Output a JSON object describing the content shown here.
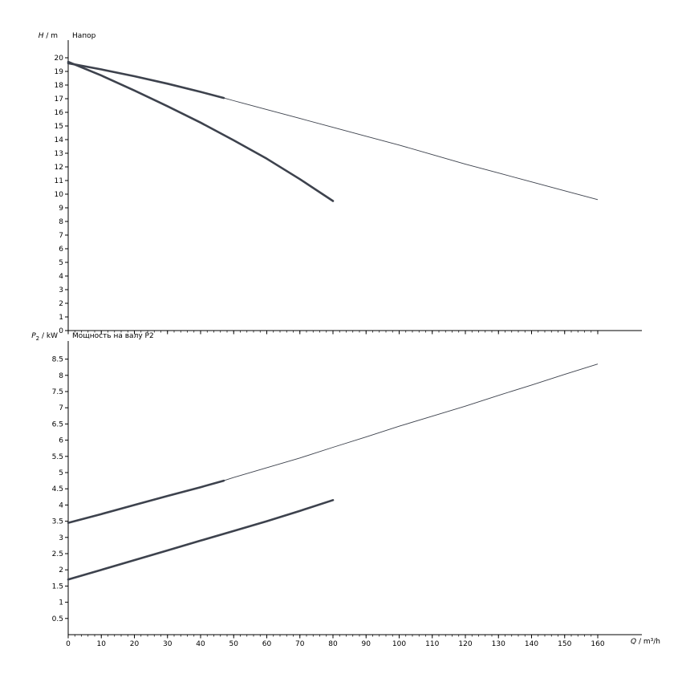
{
  "style": {
    "background": "#ffffff",
    "axis_color": "#000000",
    "curve_color": "#3d424d",
    "text_color": "#000000"
  },
  "labels": {
    "head_axis": {
      "var": "H",
      "unit": " / m"
    },
    "power_axis": {
      "var": "P",
      "sub": "2",
      "unit": " / kW"
    },
    "flow_axis": {
      "var": "Q",
      "unit": " / m³/h"
    }
  },
  "chart_data": [
    {
      "type": "line",
      "title": "Напор",
      "ylabel": "H / m",
      "xlabel": "Q / m³/h",
      "xlim": [
        0,
        160
      ],
      "ylim": [
        0,
        20
      ],
      "grid": false,
      "legend": "none",
      "x_minor_step": 2,
      "x_ticks": [
        0,
        10,
        20,
        30,
        40,
        50,
        60,
        70,
        80,
        90,
        100,
        110,
        120,
        130,
        140,
        150,
        160
      ],
      "x_tick_labels": [
        "0",
        "10",
        "20",
        "30",
        "40",
        "50",
        "60",
        "70",
        "80",
        "90",
        "100",
        "110",
        "120",
        "130",
        "140",
        "150",
        "160"
      ],
      "y_ticks": [
        0,
        1,
        2,
        3,
        4,
        5,
        6,
        7,
        8,
        9,
        10,
        11,
        12,
        13,
        14,
        15,
        16,
        17,
        18,
        19,
        20
      ],
      "y_tick_labels": [
        "0",
        "1",
        "2",
        "3",
        "4",
        "5",
        "6",
        "7",
        "8",
        "9",
        "10",
        "11",
        "12",
        "13",
        "14",
        "15",
        "16",
        "17",
        "18",
        "19",
        "20"
      ],
      "series": [
        {
          "name": "head-curve-full-speed",
          "x": [
            0,
            10,
            20,
            30,
            40,
            47,
            50,
            60,
            70,
            80,
            90,
            100,
            110,
            120,
            130,
            140,
            150,
            160
          ],
          "y": [
            19.6,
            19.15,
            18.65,
            18.1,
            17.5,
            17.05,
            16.85,
            16.2,
            15.55,
            14.9,
            14.25,
            13.6,
            12.9,
            12.2,
            11.55,
            10.9,
            10.25,
            9.6
          ],
          "bold_to_index": 5
        },
        {
          "name": "head-curve-reduced-speed",
          "x": [
            0,
            10,
            20,
            30,
            40,
            50,
            60,
            70,
            80
          ],
          "y": [
            19.7,
            18.7,
            17.6,
            16.45,
            15.25,
            13.95,
            12.6,
            11.1,
            9.5
          ],
          "bold_to_index": 8
        }
      ]
    },
    {
      "type": "line",
      "title": "Мощность на валу P2",
      "ylabel": "P2 / kW",
      "xlabel": "Q / m³/h",
      "xlim": [
        0,
        160
      ],
      "ylim": [
        0,
        9
      ],
      "grid": false,
      "legend": "none",
      "x_minor_step": 2,
      "x_ticks": [
        0,
        10,
        20,
        30,
        40,
        50,
        60,
        70,
        80,
        90,
        100,
        110,
        120,
        130,
        140,
        150,
        160
      ],
      "x_tick_labels": [
        "0",
        "10",
        "20",
        "30",
        "40",
        "50",
        "60",
        "70",
        "80",
        "90",
        "100",
        "110",
        "120",
        "130",
        "140",
        "150",
        "160"
      ],
      "y_ticks": [
        0.5,
        1,
        1.5,
        2,
        2.5,
        3,
        3.5,
        4,
        4.5,
        5,
        5.5,
        6,
        6.5,
        7,
        7.5,
        8,
        8.5
      ],
      "y_tick_labels": [
        "0.5",
        "1",
        "1.5",
        "2",
        "2.5",
        "3",
        "3.5",
        "4",
        "4.5",
        "5",
        "5.5",
        "6",
        "6.5",
        "7",
        "7.5",
        "8",
        "8.5"
      ],
      "series": [
        {
          "name": "power-curve-full-speed",
          "x": [
            0,
            10,
            20,
            30,
            40,
            47,
            50,
            60,
            70,
            80,
            90,
            100,
            110,
            120,
            130,
            140,
            150,
            160
          ],
          "y": [
            3.45,
            3.72,
            4.0,
            4.28,
            4.55,
            4.75,
            4.85,
            5.15,
            5.45,
            5.78,
            6.1,
            6.43,
            6.74,
            7.05,
            7.38,
            7.7,
            8.03,
            8.35
          ],
          "bold_to_index": 5
        },
        {
          "name": "power-curve-reduced-speed",
          "x": [
            0,
            10,
            20,
            30,
            40,
            50,
            60,
            70,
            80
          ],
          "y": [
            1.7,
            2.0,
            2.3,
            2.6,
            2.9,
            3.2,
            3.5,
            3.82,
            4.15
          ],
          "bold_to_index": 8
        }
      ]
    }
  ]
}
